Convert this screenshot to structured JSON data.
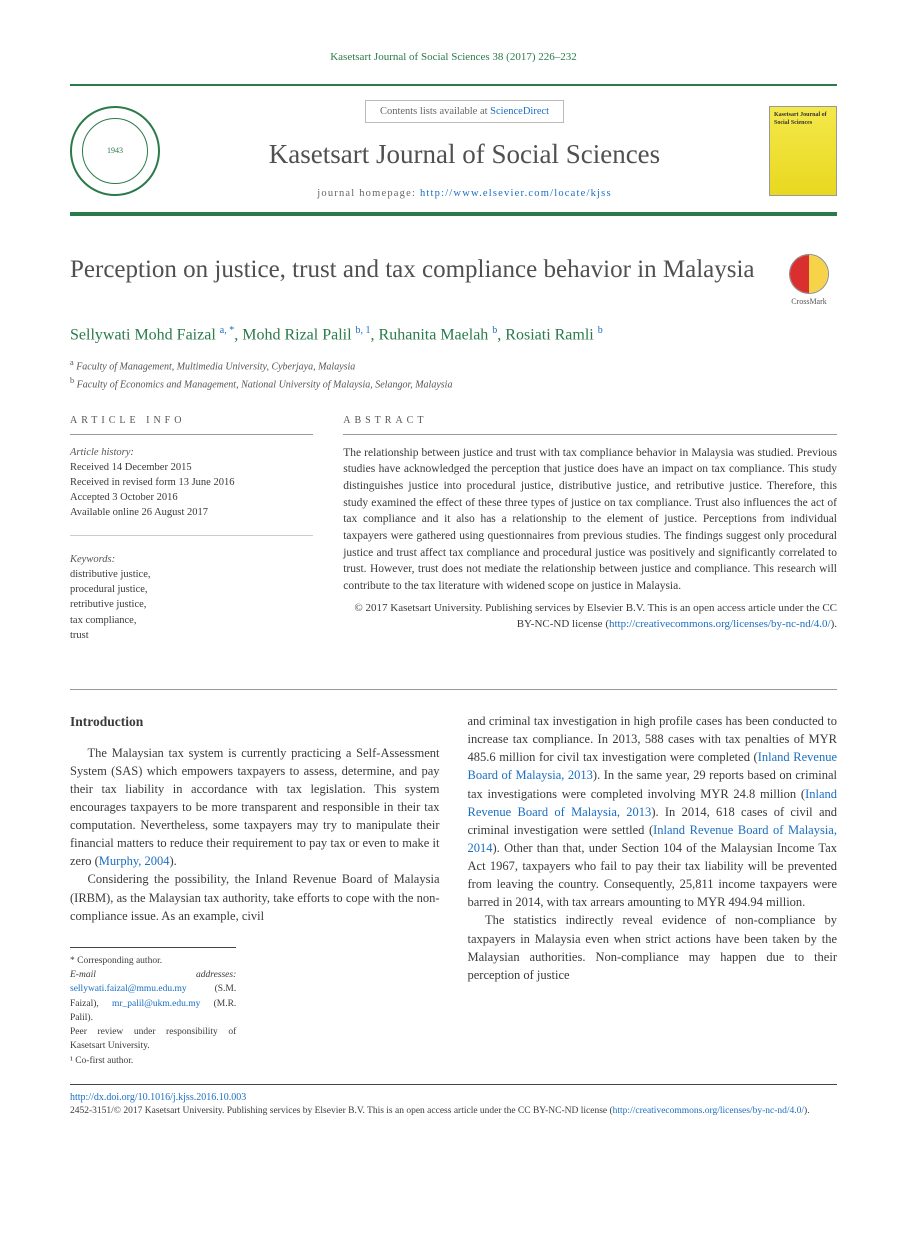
{
  "header": {
    "citation": "Kasetsart Journal of Social Sciences 38 (2017) 226–232",
    "contents_prefix": "Contents lists available at ",
    "contents_link": "ScienceDirect",
    "journal_name": "Kasetsart Journal of Social Sciences",
    "homepage_label": "journal homepage: ",
    "homepage_url": "http://www.elsevier.com/locate/kjss",
    "seal_top": "KASETSART UNIVERSITY",
    "seal_year": "1943",
    "cover_title": "Kasetsart Journal of Social Sciences"
  },
  "article": {
    "title": "Perception on justice, trust and tax compliance behavior in Malaysia",
    "crossmark_label": "CrossMark",
    "authors_html": "Sellywati Mohd Faizal <sup>a, *</sup>, Mohd Rizal Palil <sup>b, 1</sup>, Ruhanita Maelah <sup>b</sup>, Rosiati Ramli <sup>b</sup>",
    "affiliations": [
      {
        "sup": "a",
        "text": "Faculty of Management, Multimedia University, Cyberjaya, Malaysia"
      },
      {
        "sup": "b",
        "text": "Faculty of Economics and Management, National University of Malaysia, Selangor, Malaysia"
      }
    ]
  },
  "info": {
    "label": "ARTICLE INFO",
    "history_head": "Article history:",
    "history": [
      "Received 14 December 2015",
      "Received in revised form 13 June 2016",
      "Accepted 3 October 2016",
      "Available online 26 August 2017"
    ],
    "keywords_head": "Keywords:",
    "keywords": [
      "distributive justice,",
      "procedural justice,",
      "retributive justice,",
      "tax compliance,",
      "trust"
    ]
  },
  "abstract": {
    "label": "ABSTRACT",
    "text": "The relationship between justice and trust with tax compliance behavior in Malaysia was studied. Previous studies have acknowledged the perception that justice does have an impact on tax compliance. This study distinguishes justice into procedural justice, distributive justice, and retributive justice. Therefore, this study examined the effect of these three types of justice on tax compliance. Trust also influences the act of tax compliance and it also has a relationship to the element of justice. Perceptions from individual taxpayers were gathered using questionnaires from previous studies. The findings suggest only procedural justice and trust affect tax compliance and procedural justice was positively and significantly correlated to trust. However, trust does not mediate the relationship between justice and compliance. This research will contribute to the tax literature with widened scope on justice in Malaysia.",
    "copyright_a": "© 2017 Kasetsart University. Publishing services by Elsevier B.V. This is an open access article under the CC BY-NC-ND license (",
    "copyright_link": "http://creativecommons.org/licenses/by-nc-nd/4.0/",
    "copyright_b": ")."
  },
  "body": {
    "heading": "Introduction",
    "col1_p1_a": "The Malaysian tax system is currently practicing a Self-Assessment System (SAS) which empowers taxpayers to assess, determine, and pay their tax liability in accordance with tax legislation. This system encourages taxpayers to be more transparent and responsible in their tax computation. Nevertheless, some taxpayers may try to manipulate their financial matters to reduce their requirement to pay tax or even to make it zero (",
    "col1_p1_link": "Murphy, 2004",
    "col1_p1_b": ").",
    "col1_p2": "Considering the possibility, the Inland Revenue Board of Malaysia (IRBM), as the Malaysian tax authority, take efforts to cope with the non-compliance issue. As an example, civil",
    "col2_p1_a": "and criminal tax investigation in high profile cases has been conducted to increase tax compliance. In 2013, 588 cases with tax penalties of MYR 485.6 million for civil tax investigation were completed (",
    "col2_link1": "Inland Revenue Board of Malaysia, 2013",
    "col2_p1_b": "). In the same year, 29 reports based on criminal tax investigations were completed involving MYR 24.8 million (",
    "col2_link2": "Inland Revenue Board of Malaysia, 2013",
    "col2_p1_c": "). In 2014, 618 cases of civil and criminal investigation were settled (",
    "col2_link3": "Inland Revenue Board of Malaysia, 2014",
    "col2_p1_d": "). Other than that, under Section 104 of the Malaysian Income Tax Act 1967, taxpayers who fail to pay their tax liability will be prevented from leaving the country. Consequently, 25,811 income taxpayers were barred in 2014, with tax arrears amounting to MYR 494.94 million.",
    "col2_p2": "The statistics indirectly reveal evidence of non-compliance by taxpayers in Malaysia even when strict actions have been taken by the Malaysian authorities. Non-compliance may happen due to their perception of justice"
  },
  "footnotes": {
    "corr": "* Corresponding author.",
    "email_label": "E-mail addresses:",
    "email1": "sellywati.faizal@mmu.edu.my",
    "email1_who": "(S.M. Faizal),",
    "email2": "mr_palil@ukm.edu.my",
    "email2_who": "(M.R. Palil).",
    "peer": "Peer review under responsibility of Kasetsart University.",
    "cofirst": "¹ Co-first author."
  },
  "footer": {
    "doi": "http://dx.doi.org/10.1016/j.kjss.2016.10.003",
    "issn_line_a": "2452-3151/© 2017 Kasetsart University. Publishing services by Elsevier B.V. This is an open access article under the CC BY-NC-ND license (",
    "issn_link": "http://creativecommons.org/licenses/by-nc-nd/4.0/",
    "issn_line_b": ")."
  }
}
